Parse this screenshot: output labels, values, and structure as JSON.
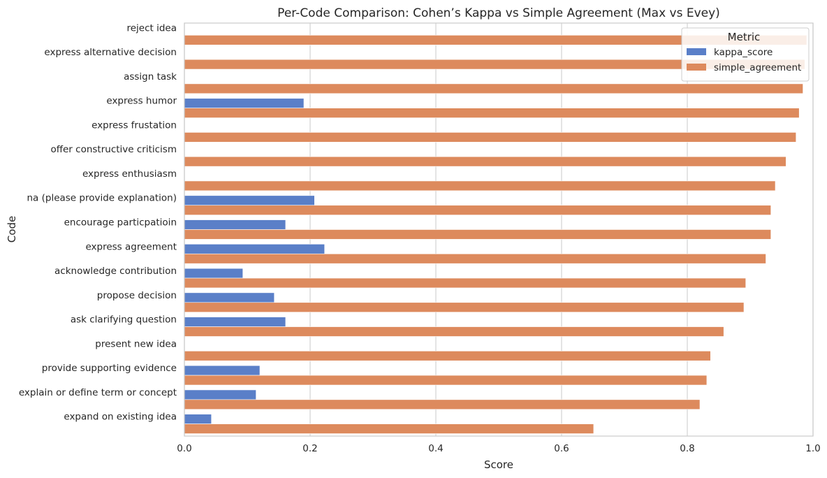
{
  "chart_data": {
    "type": "bar",
    "orientation": "horizontal",
    "title": "Per-Code Comparison: Cohen’s Kappa vs Simple Agreement (Max vs Evey)",
    "xlabel": "Score",
    "ylabel": "Code",
    "xlim": [
      0,
      1
    ],
    "xticks": [
      "0.0",
      "0.2",
      "0.4",
      "0.6",
      "0.8",
      "1.0"
    ],
    "grid": "vertical",
    "legend": {
      "title": "Metric",
      "placement": "top-right"
    },
    "categories": [
      "reject idea",
      "express alternative decision",
      "assign task",
      "express humor",
      "express frustation",
      "offer constructive criticism",
      "express enthusiasm",
      "na (please provide explanation)",
      "encourage particpatioin",
      "express agreement",
      "acknowledge contribution",
      "propose decision",
      "ask clarifying question",
      "present new idea",
      "provide supporting evidence",
      "explain or define term or concept",
      "expand on existing idea"
    ],
    "series": [
      {
        "name": "kappa_score",
        "color": "#5a7fc8",
        "values": [
          0,
          0,
          0,
          0.19,
          0,
          0,
          0,
          0.207,
          0.161,
          0.223,
          0.093,
          0.143,
          0.161,
          0,
          0.12,
          0.114,
          0.043
        ]
      },
      {
        "name": "simple_agreement",
        "color": "#dd8a5d",
        "values": [
          0.99,
          0.987,
          0.984,
          0.978,
          0.973,
          0.957,
          0.94,
          0.933,
          0.933,
          0.925,
          0.893,
          0.89,
          0.858,
          0.837,
          0.831,
          0.82,
          0.651
        ]
      }
    ]
  }
}
